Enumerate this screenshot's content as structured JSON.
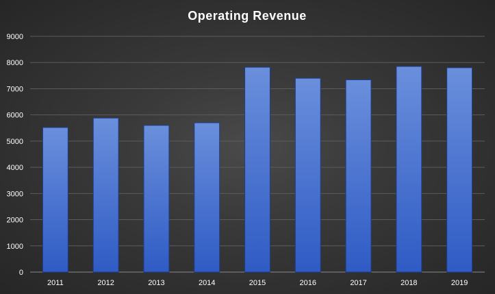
{
  "chart_data": {
    "type": "bar",
    "title": "Operating  Revenue",
    "xlabel": "",
    "ylabel": "",
    "categories": [
      "2011",
      "2012",
      "2013",
      "2014",
      "2015",
      "2016",
      "2017",
      "2018",
      "2019"
    ],
    "series": [
      {
        "name": "Operating Revenue",
        "values": [
          5520,
          5880,
          5600,
          5700,
          7820,
          7400,
          7340,
          7850,
          7800
        ]
      }
    ],
    "ylim": [
      0,
      9000
    ],
    "yticks": [
      0,
      1000,
      2000,
      3000,
      4000,
      5000,
      6000,
      7000,
      8000,
      9000
    ],
    "ytick_labels": [
      "0",
      "1000",
      "2000",
      "3000",
      "4000",
      "5000",
      "6000",
      "7000",
      "8000",
      "9000"
    ],
    "grid": true,
    "legend": "none",
    "colors": {
      "bar_top": "#6a8fdc",
      "bar_bottom": "#2f5bc4",
      "bar_edge": "#1e3d8a"
    }
  }
}
